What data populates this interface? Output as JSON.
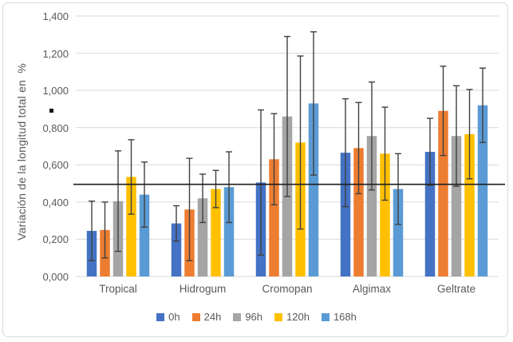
{
  "chart_data": {
    "type": "bar",
    "title": "",
    "ylabel": "Variación de la longitud total en  %",
    "categories": [
      "Tropical",
      "Hidrogum",
      "Cromopan",
      "Algimax",
      "Geltrate"
    ],
    "series": [
      {
        "name": "0h",
        "color": "#4472C4",
        "values": [
          0.245,
          0.285,
          0.505,
          0.665,
          0.67
        ],
        "errors": [
          0.16,
          0.095,
          0.39,
          0.29,
          0.18
        ]
      },
      {
        "name": "24h",
        "color": "#ED7D31",
        "values": [
          0.25,
          0.36,
          0.63,
          0.69,
          0.89
        ],
        "errors": [
          0.15,
          0.275,
          0.245,
          0.245,
          0.24
        ]
      },
      {
        "name": "96h",
        "color": "#A5A5A5",
        "values": [
          0.405,
          0.42,
          0.86,
          0.755,
          0.755
        ],
        "errors": [
          0.27,
          0.13,
          0.43,
          0.29,
          0.27
        ]
      },
      {
        "name": "120h",
        "color": "#FFC000",
        "values": [
          0.535,
          0.47,
          0.72,
          0.66,
          0.765
        ],
        "errors": [
          0.2,
          0.1,
          0.465,
          0.25,
          0.24
        ]
      },
      {
        "name": "168h",
        "color": "#5B9BD5",
        "values": [
          0.44,
          0.48,
          0.93,
          0.47,
          0.92
        ],
        "errors": [
          0.175,
          0.19,
          0.385,
          0.19,
          0.2
        ]
      }
    ],
    "ylim": [
      0,
      1.4
    ],
    "ytick_step": 0.2,
    "ytick_labels": [
      "0,000",
      "0,200",
      "0,400",
      "0,600",
      "0,800",
      "1,000",
      "1,200",
      "1,400"
    ],
    "reference_line_value": 0.495,
    "reference_line_color": "#1f1f1f",
    "gridline_color": "#d9d9d9",
    "error_bar_color": "#404040",
    "text_color": "#595959",
    "grid": true,
    "legend_position": "bottom",
    "stray_marker_glyph": "▪"
  }
}
